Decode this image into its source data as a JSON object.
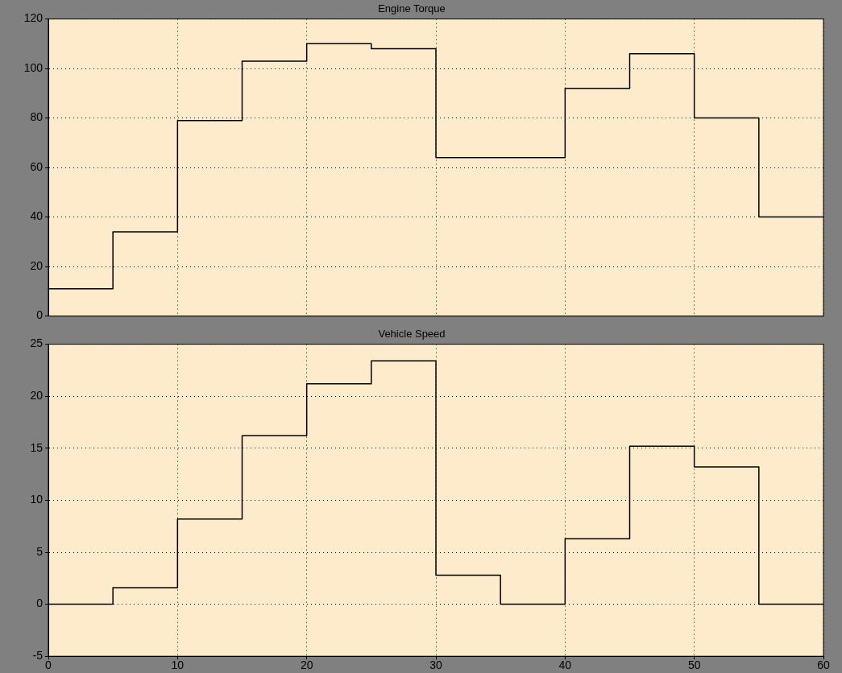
{
  "chart_data": [
    {
      "type": "step",
      "title": "Engine Torque",
      "x": [
        0,
        5,
        10,
        15,
        20,
        25,
        30,
        35,
        40,
        45,
        50,
        55,
        60
      ],
      "series": [
        {
          "color": "#000000",
          "values": [
            11,
            34,
            79,
            103,
            110,
            108,
            64,
            64,
            92,
            106,
            80,
            40,
            40
          ]
        }
      ],
      "xlim": [
        0,
        60
      ],
      "xticks": [
        0,
        10,
        20,
        30,
        40,
        50,
        60
      ],
      "ylim": [
        0,
        120
      ],
      "yticks": [
        0,
        20,
        40,
        60,
        80,
        100,
        120
      ],
      "grid": true,
      "tick_labels": "y"
    },
    {
      "type": "step",
      "title": "Vehicle Speed",
      "x": [
        0,
        5,
        10,
        15,
        20,
        25,
        30,
        35,
        40,
        45,
        50,
        55,
        60
      ],
      "series": [
        {
          "color": "#000000",
          "values": [
            0,
            1.6,
            8.2,
            16.2,
            21.2,
            23.4,
            2.8,
            0,
            6.3,
            15.2,
            13.2,
            0,
            0
          ]
        }
      ],
      "xlim": [
        0,
        60
      ],
      "xticks": [
        0,
        10,
        20,
        30,
        40,
        50,
        60
      ],
      "ylim": [
        -5,
        25
      ],
      "yticks": [
        -5,
        0,
        5,
        10,
        15,
        20,
        25
      ],
      "grid": true
    }
  ]
}
